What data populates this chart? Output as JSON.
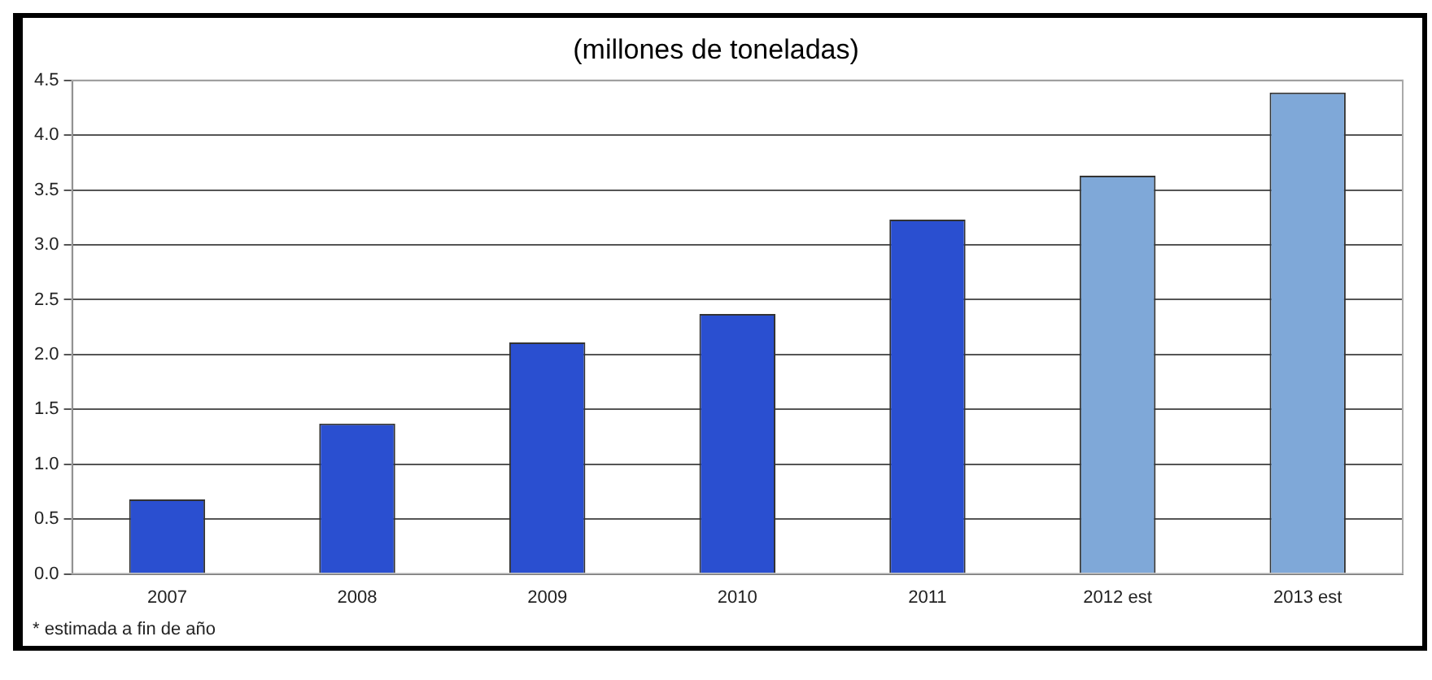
{
  "chart_data": {
    "type": "bar",
    "title": "(millones de toneladas)",
    "categories": [
      "2007",
      "2008",
      "2009",
      "2010",
      "2011",
      "2012 est",
      "2013 est"
    ],
    "values": [
      0.68,
      1.37,
      2.11,
      2.37,
      3.23,
      3.63,
      4.39
    ],
    "colors": [
      "#2a4fd0",
      "#2a4fd0",
      "#2a4fd0",
      "#2a4fd0",
      "#2a4fd0",
      "#7fa8d8",
      "#7fa8d8"
    ],
    "ylim": [
      0,
      4.5
    ],
    "yticks": [
      {
        "value": 0,
        "label": "0.0"
      },
      0.5,
      {
        "value": 1,
        "label": "1.0"
      },
      1.5,
      {
        "value": 2,
        "label": "2.0"
      },
      2.5,
      {
        "value": 3,
        "label": "3.0"
      },
      3.5,
      {
        "value": 4,
        "label": "4.0"
      },
      4.5
    ],
    "grid": "y",
    "annotations": [
      "* estimada a fin de año"
    ]
  }
}
